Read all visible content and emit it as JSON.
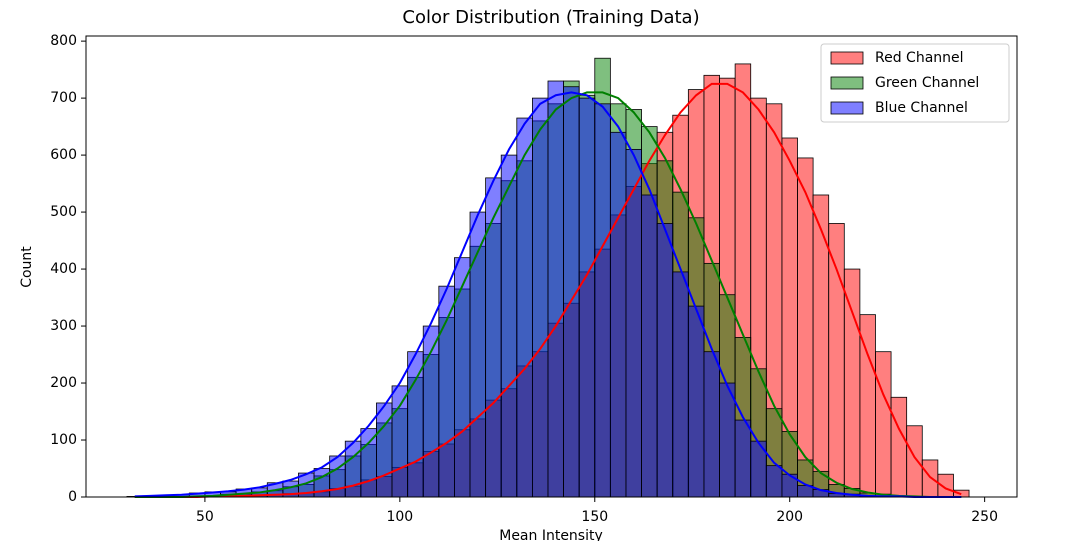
{
  "chart_data": {
    "type": "histogram",
    "title": "Color Distribution (Training Data)",
    "x_label": "Mean Intensity",
    "y_label": "Count",
    "bins": [
      30,
      34,
      38,
      42,
      46,
      50,
      54,
      58,
      62,
      66,
      70,
      74,
      78,
      82,
      86,
      90,
      94,
      98,
      102,
      106,
      110,
      114,
      118,
      122,
      126,
      130,
      134,
      138,
      142,
      146,
      150,
      154,
      158,
      162,
      166,
      170,
      174,
      178,
      182,
      186,
      190,
      194,
      198,
      202,
      206,
      210,
      214,
      218,
      222,
      226,
      230,
      234,
      238,
      242,
      246
    ],
    "kde_x": [
      32,
      36,
      40,
      44,
      48,
      52,
      56,
      60,
      64,
      68,
      72,
      76,
      80,
      84,
      88,
      92,
      96,
      100,
      104,
      108,
      112,
      116,
      120,
      124,
      128,
      132,
      136,
      140,
      144,
      148,
      152,
      156,
      160,
      164,
      168,
      172,
      176,
      180,
      184,
      188,
      192,
      196,
      200,
      204,
      208,
      212,
      216,
      220,
      224,
      228,
      232,
      236,
      240,
      244
    ],
    "series": [
      {
        "name": "Red Channel",
        "color": "#ff0000",
        "values": [
          0,
          0,
          0,
          0,
          0,
          1,
          2,
          1,
          3,
          4,
          6,
          7,
          9,
          15,
          19,
          30,
          36,
          52,
          60,
          80,
          93,
          118,
          137,
          170,
          190,
          230,
          255,
          305,
          340,
          395,
          435,
          495,
          545,
          585,
          640,
          670,
          715,
          740,
          735,
          760,
          700,
          690,
          630,
          595,
          530,
          480,
          400,
          320,
          255,
          175,
          125,
          65,
          40,
          12
        ],
        "kde": [
          0,
          0,
          0,
          0,
          0,
          1,
          1,
          2,
          3,
          4,
          5,
          7,
          10,
          14,
          20,
          28,
          38,
          50,
          62,
          78,
          95,
          115,
          140,
          165,
          195,
          225,
          260,
          300,
          345,
          390,
          440,
          490,
          540,
          590,
          635,
          675,
          705,
          725,
          725,
          710,
          680,
          640,
          590,
          535,
          470,
          400,
          325,
          250,
          180,
          120,
          70,
          35,
          15,
          5
        ]
      },
      {
        "name": "Green Channel",
        "color": "#008000",
        "values": [
          0,
          0,
          0,
          0,
          1,
          2,
          5,
          5,
          9,
          11,
          18,
          22,
          37,
          48,
          72,
          92,
          130,
          155,
          210,
          250,
          315,
          365,
          440,
          480,
          555,
          590,
          660,
          690,
          730,
          705,
          770,
          690,
          680,
          650,
          590,
          535,
          490,
          410,
          355,
          280,
          225,
          155,
          115,
          65,
          45,
          22,
          15,
          7,
          5,
          2,
          1,
          0,
          0,
          0
        ],
        "kde": [
          0,
          0,
          0,
          0,
          1,
          2,
          4,
          6,
          8,
          12,
          17,
          24,
          35,
          50,
          70,
          95,
          125,
          160,
          205,
          255,
          310,
          370,
          430,
          490,
          545,
          600,
          645,
          680,
          700,
          710,
          710,
          700,
          675,
          640,
          595,
          540,
          480,
          415,
          350,
          285,
          220,
          160,
          110,
          70,
          42,
          25,
          14,
          8,
          4,
          2,
          1,
          0,
          0,
          0
        ]
      },
      {
        "name": "Blue Channel",
        "color": "#0000ff",
        "values": [
          1,
          2,
          2,
          4,
          7,
          9,
          9,
          14,
          16,
          25,
          28,
          42,
          50,
          72,
          98,
          120,
          165,
          195,
          255,
          300,
          370,
          420,
          500,
          560,
          600,
          665,
          700,
          730,
          720,
          700,
          690,
          640,
          610,
          530,
          480,
          395,
          335,
          255,
          200,
          135,
          98,
          55,
          40,
          20,
          13,
          6,
          5,
          2,
          1,
          1,
          0,
          0,
          0,
          0
        ],
        "kde": [
          1,
          2,
          3,
          4,
          6,
          8,
          10,
          13,
          17,
          23,
          30,
          40,
          52,
          70,
          95,
          125,
          160,
          200,
          250,
          305,
          365,
          430,
          495,
          555,
          610,
          655,
          690,
          705,
          710,
          705,
          685,
          650,
          600,
          540,
          470,
          400,
          330,
          260,
          195,
          140,
          95,
          60,
          38,
          22,
          12,
          7,
          4,
          2,
          1,
          1,
          0,
          0,
          0,
          0
        ]
      }
    ],
    "xlim": [
      19.5,
      258.3
    ],
    "ylim": [
      0,
      809
    ],
    "xticks": [
      50,
      100,
      150,
      200,
      250
    ],
    "yticks": [
      0,
      100,
      200,
      300,
      400,
      500,
      600,
      700,
      800
    ],
    "grid": false,
    "legend": "upper right"
  }
}
